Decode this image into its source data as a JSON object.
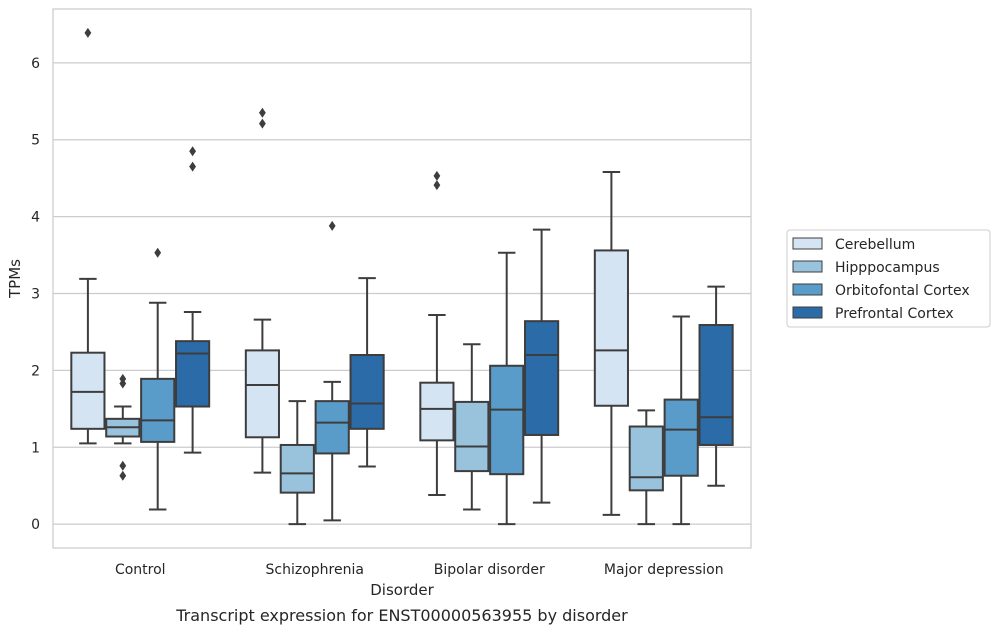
{
  "chart_data": {
    "type": "boxplot",
    "caption": "Transcript expression for ENST00000563955 by disorder",
    "xlabel": "Disorder",
    "ylabel": "TPMs",
    "ylim": [
      -0.31,
      6.7
    ],
    "yticks": [
      0,
      1,
      2,
      3,
      4,
      5,
      6
    ],
    "grid": "horizontal",
    "legend_position": "right",
    "categories": [
      "Control",
      "Schizophrenia",
      "Bipolar disorder",
      "Major depression"
    ],
    "series": [
      {
        "name": "Cerebellum",
        "color": "#d5e4f3",
        "boxes": [
          {
            "whislo": 1.05,
            "q1": 1.24,
            "med": 1.72,
            "q3": 2.23,
            "whishi": 3.19,
            "fliers": [
              6.39
            ]
          },
          {
            "whislo": 0.67,
            "q1": 1.13,
            "med": 1.81,
            "q3": 2.26,
            "whishi": 2.66,
            "fliers": [
              5.21,
              5.35
            ]
          },
          {
            "whislo": 0.38,
            "q1": 1.09,
            "med": 1.5,
            "q3": 1.84,
            "whishi": 2.72,
            "fliers": [
              4.41,
              4.53
            ]
          },
          {
            "whislo": 0.12,
            "q1": 1.54,
            "med": 2.26,
            "q3": 3.56,
            "whishi": 4.58,
            "fliers": []
          }
        ]
      },
      {
        "name": "Hipppocampus",
        "color": "#99c2dd",
        "boxes": [
          {
            "whislo": 1.05,
            "q1": 1.14,
            "med": 1.26,
            "q3": 1.37,
            "whishi": 1.53,
            "fliers": [
              0.63,
              0.76,
              1.83,
              1.89
            ]
          },
          {
            "whislo": 0.0,
            "q1": 0.41,
            "med": 0.66,
            "q3": 1.03,
            "whishi": 1.6,
            "fliers": []
          },
          {
            "whislo": 0.19,
            "q1": 0.69,
            "med": 1.01,
            "q3": 1.59,
            "whishi": 2.34,
            "fliers": []
          },
          {
            "whislo": 0.0,
            "q1": 0.44,
            "med": 0.61,
            "q3": 1.27,
            "whishi": 1.48,
            "fliers": []
          }
        ]
      },
      {
        "name": "Orbitofontal Cortex",
        "color": "#5a9cc9",
        "boxes": [
          {
            "whislo": 0.19,
            "q1": 1.07,
            "med": 1.35,
            "q3": 1.89,
            "whishi": 2.88,
            "fliers": [
              3.53
            ]
          },
          {
            "whislo": 0.05,
            "q1": 0.92,
            "med": 1.32,
            "q3": 1.6,
            "whishi": 1.85,
            "fliers": [
              3.88
            ]
          },
          {
            "whislo": 0.0,
            "q1": 0.65,
            "med": 1.49,
            "q3": 2.06,
            "whishi": 3.53,
            "fliers": []
          },
          {
            "whislo": 0.0,
            "q1": 0.63,
            "med": 1.23,
            "q3": 1.62,
            "whishi": 2.7,
            "fliers": []
          }
        ]
      },
      {
        "name": "Prefrontal Cortex",
        "color": "#2a6ba8",
        "boxes": [
          {
            "whislo": 0.93,
            "q1": 1.53,
            "med": 2.22,
            "q3": 2.38,
            "whishi": 2.76,
            "fliers": [
              4.65,
              4.85
            ]
          },
          {
            "whislo": 0.75,
            "q1": 1.24,
            "med": 1.57,
            "q3": 2.2,
            "whishi": 3.2,
            "fliers": []
          },
          {
            "whislo": 0.28,
            "q1": 1.16,
            "med": 2.2,
            "q3": 2.64,
            "whishi": 3.83,
            "fliers": []
          },
          {
            "whislo": 0.5,
            "q1": 1.03,
            "med": 1.39,
            "q3": 2.59,
            "whishi": 3.09,
            "fliers": []
          }
        ]
      }
    ]
  }
}
